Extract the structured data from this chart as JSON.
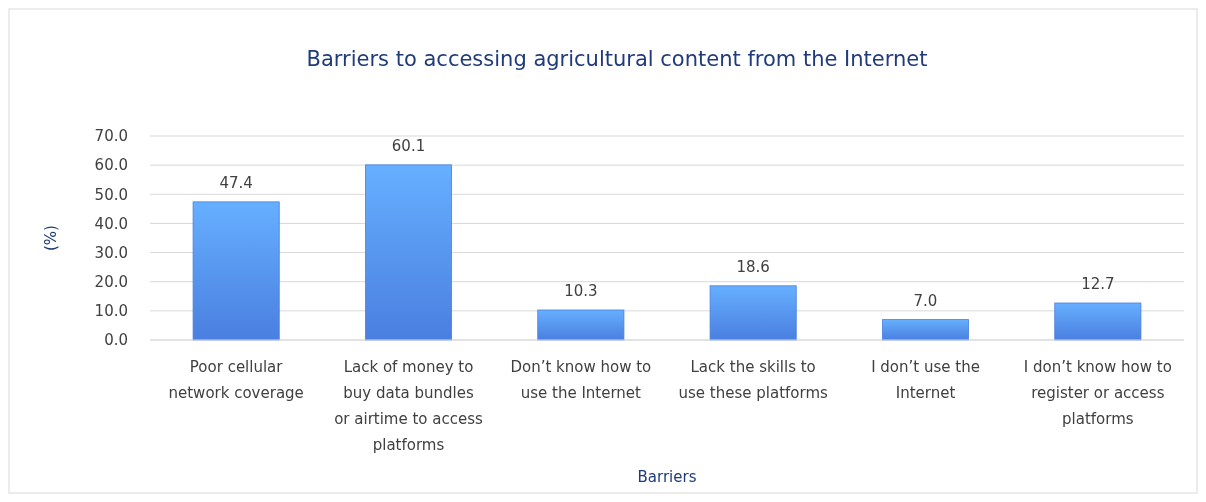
{
  "chart_data": {
    "type": "bar",
    "title": "Barriers to accessing agricultural content from the Internet",
    "xlabel": "Barriers",
    "ylabel": "(%)",
    "categories": [
      "Poor cellular network coverage",
      "Lack of money to buy data bundles or airtime to access platforms",
      "Don’t know how to use the Internet",
      "Lack the skills to use these platforms",
      "I don’t use the Internet",
      "I don’t know how to register or access platforms"
    ],
    "values": [
      47.4,
      60.1,
      10.3,
      18.6,
      7.0,
      12.7
    ],
    "value_labels": [
      "47.4",
      "60.1",
      "10.3",
      "18.6",
      "7.0",
      "12.7"
    ],
    "color": "#4a7fe0",
    "ylim": [
      0,
      70
    ],
    "yticks": [
      {
        "value": 0,
        "label": "0.0"
      },
      {
        "value": 10,
        "label": "10.0"
      },
      {
        "value": 20,
        "label": "20.0"
      },
      {
        "value": 30,
        "label": "30.0"
      },
      {
        "value": 40,
        "label": "40.0"
      },
      {
        "value": 50,
        "label": "50.0"
      },
      {
        "value": 60,
        "label": "60.0"
      },
      {
        "value": 70,
        "label": "70.0"
      }
    ],
    "grid": "y"
  }
}
